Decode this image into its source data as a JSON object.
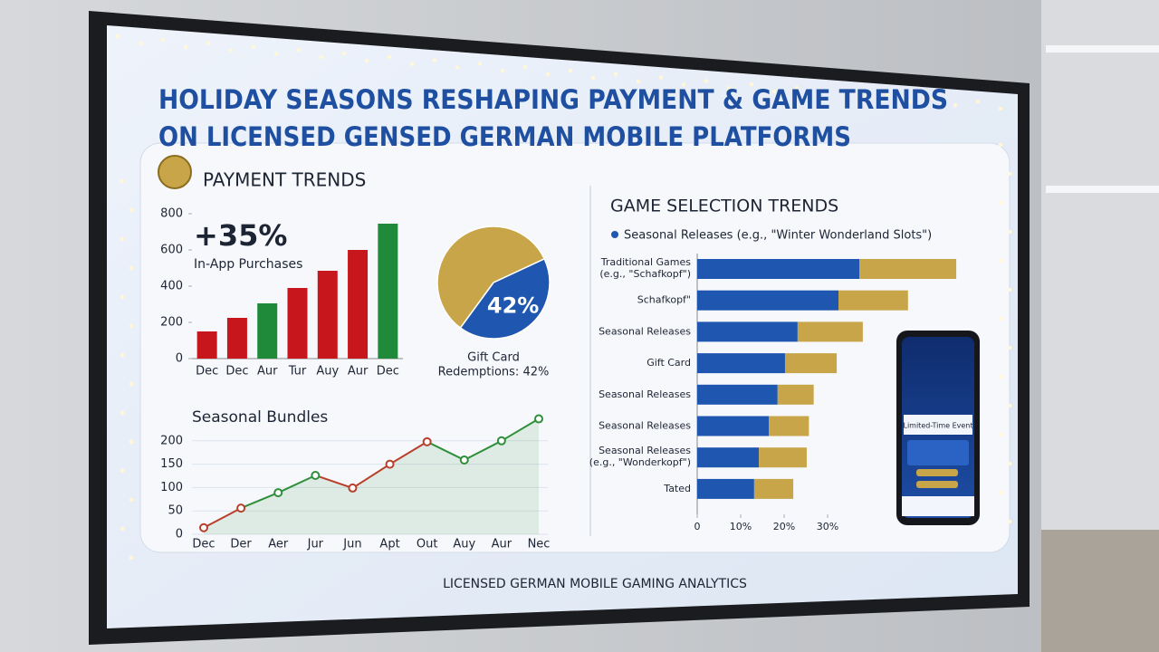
{
  "title": [
    "HOLIDAY SEASONS RESHAPING PAYMENT & GAME TRENDS",
    "ON LICENSED GENSED GERMAN MOBILE PLATFORMS"
  ],
  "footer": "LICENSED GERMAN MOBILE GAMING ANALYTICS",
  "phone": {
    "banner": "Limited-Time Event"
  },
  "chart_data": [
    {
      "type": "bar",
      "title": "PAYMENT TRENDS",
      "annotation": "+35%",
      "annotation_caption": "In-App Purchases",
      "categories": [
        "Dec",
        "Dec",
        "Aur",
        "Tur",
        "Auy",
        "Aur",
        "Dec"
      ],
      "values": [
        150,
        225,
        305,
        390,
        485,
        600,
        745
      ],
      "colors": [
        "#c8161d",
        "#c8161d",
        "#1e8a3a",
        "#c8161d",
        "#c8161d",
        "#c8161d",
        "#1e8a3a"
      ],
      "ylim": [
        0,
        800
      ],
      "yticks": [
        0,
        200,
        400,
        600,
        800
      ]
    },
    {
      "type": "pie",
      "values": [
        42,
        58
      ],
      "colors": [
        "#1f56b0",
        "#c7a548"
      ],
      "value_labels": [
        "42%",
        null
      ],
      "caption": [
        "Gift Card",
        "Redemptions: 42%"
      ]
    },
    {
      "type": "line",
      "title": "Seasonal Bundles",
      "categories": [
        "Dec",
        "Der",
        "Aer",
        "Jur",
        "Jun",
        "Apt",
        "Out",
        "Auy",
        "Aur",
        "Nec"
      ],
      "values": [
        14,
        56,
        89,
        126,
        99,
        150,
        198,
        159,
        200,
        247
      ],
      "segment_colors": [
        "#b8402a",
        "#2f8f3a",
        "#2f8f3a",
        "#b8402a",
        "#b8402a",
        "#b8402a",
        "#2f8f3a",
        "#2f8f3a",
        "#2f8f3a"
      ],
      "color": "#2f8f3a",
      "ylim": [
        0,
        250
      ],
      "yticks": [
        0,
        50,
        100,
        150,
        200
      ]
    },
    {
      "type": "bar",
      "orientation": "horizontal",
      "stacked": true,
      "title": "GAME SELECTION TRENDS",
      "categories": [
        [
          "Traditional Games",
          "(e.g., \"Schafkopf\")"
        ],
        "Schafkopf\"",
        "Seasonal Releases",
        "Gift Card",
        "Seasonal Releases",
        "Seasonal Releases",
        [
          "Seasonal Releases",
          "(e.g., \"Wonderkopf\")"
        ],
        "Tated"
      ],
      "series": [
        {
          "name": "Seasonal Releases  (e.g., \"Winter Wonderland Slots\")",
          "color": "#1f56b0",
          "values": [
            37.3,
            32.5,
            23.1,
            20.2,
            18.5,
            16.5,
            14.2,
            13.1
          ]
        },
        {
          "color": "#c7a548",
          "values": [
            22.3,
            16,
            15,
            11.9,
            8.3,
            9.2,
            11,
            9
          ]
        }
      ],
      "xlim": [
        0,
        60
      ],
      "xticks": [
        0,
        {
          "value": 10,
          "label": "10%"
        },
        {
          "value": 20,
          "label": "20%"
        },
        {
          "value": 30,
          "label": "30%"
        }
      ]
    }
  ]
}
